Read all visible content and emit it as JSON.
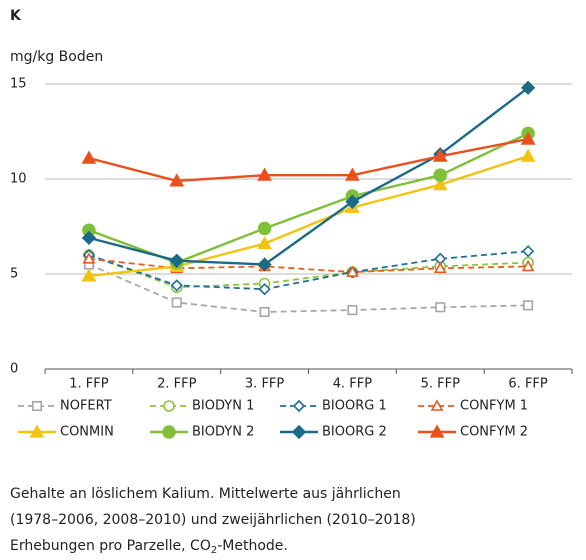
{
  "chart_data": {
    "type": "line",
    "title": "K",
    "y_label": "mg/kg Boden",
    "categories": [
      "1. FFP",
      "2. FFP",
      "3. FFP",
      "4. FFP",
      "5. FFP",
      "6. FFP"
    ],
    "ylim": [
      0,
      15
    ],
    "yticks": [
      0,
      5,
      10,
      15
    ],
    "grid": true,
    "series": [
      {
        "name": "NOFERT",
        "color": "#a6a6a6",
        "marker": "square",
        "filled": false,
        "dashed": true,
        "values": [
          5.5,
          3.5,
          3.0,
          3.1,
          3.25,
          3.35
        ]
      },
      {
        "name": "BIODYN 1",
        "color": "#8cc43c",
        "marker": "circle",
        "filled": false,
        "dashed": true,
        "values": [
          6.0,
          4.3,
          4.5,
          5.1,
          5.4,
          5.6
        ]
      },
      {
        "name": "BIOORG 1",
        "color": "#1f6f95",
        "marker": "diamond",
        "filled": false,
        "dashed": true,
        "values": [
          6.0,
          4.4,
          4.2,
          5.1,
          5.8,
          6.2
        ]
      },
      {
        "name": "CONFYM 1",
        "color": "#ea5a1e",
        "marker": "triangle",
        "filled": false,
        "dashed": true,
        "values": [
          5.8,
          5.3,
          5.4,
          5.1,
          5.3,
          5.4
        ]
      },
      {
        "name": "CONMIN",
        "color": "#f2c412",
        "marker": "triangle",
        "filled": true,
        "dashed": false,
        "values": [
          4.9,
          5.4,
          6.6,
          8.5,
          9.7,
          11.2
        ]
      },
      {
        "name": "BIODYN 2",
        "color": "#7fbf3a",
        "marker": "circle",
        "filled": true,
        "dashed": false,
        "values": [
          7.3,
          5.6,
          7.4,
          9.1,
          10.2,
          12.4
        ]
      },
      {
        "name": "BIOORG 2",
        "color": "#1b6a8a",
        "marker": "diamond",
        "filled": true,
        "dashed": false,
        "values": [
          6.9,
          5.7,
          5.5,
          8.8,
          11.3,
          14.8
        ]
      },
      {
        "name": "CONFYM 2",
        "color": "#e8501e",
        "marker": "triangle",
        "filled": true,
        "dashed": false,
        "values": [
          11.1,
          9.9,
          10.2,
          10.2,
          11.2,
          12.1
        ]
      }
    ],
    "caption": {
      "lines": [
        "Gehalte an löslichem Kalium. Mittelwerte aus jährlichen",
        "(1978–2006, 2008–2010) und zweijährlichen (2010–2018)"
      ],
      "last": {
        "before": "Erhebungen pro Parzelle, CO",
        "sub": "2",
        "after": "-Methode."
      }
    }
  }
}
